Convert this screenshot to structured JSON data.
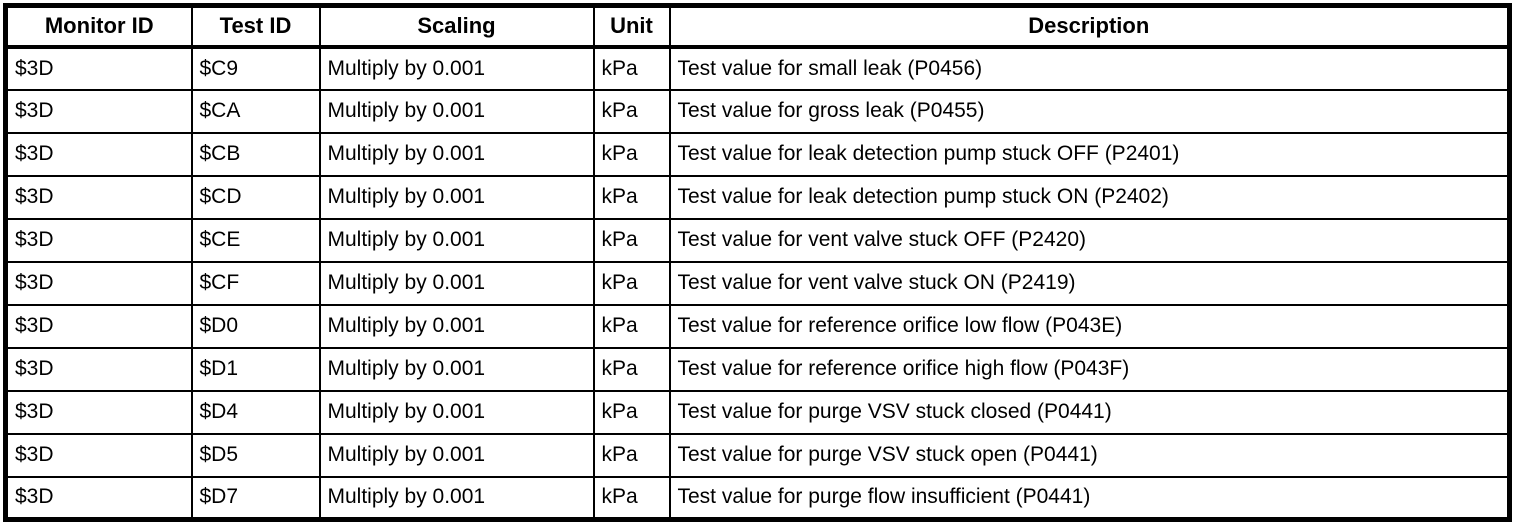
{
  "table": {
    "columns": [
      "Monitor ID",
      "Test ID",
      "Scaling",
      "Unit",
      "Description"
    ],
    "rows": [
      {
        "monitor_id": "$3D",
        "test_id": "$C9",
        "scaling": "Multiply by 0.001",
        "unit": "kPa",
        "description": "Test value for small leak (P0456)"
      },
      {
        "monitor_id": "$3D",
        "test_id": "$CA",
        "scaling": "Multiply by 0.001",
        "unit": "kPa",
        "description": "Test value for gross leak (P0455)"
      },
      {
        "monitor_id": "$3D",
        "test_id": "$CB",
        "scaling": "Multiply by 0.001",
        "unit": "kPa",
        "description": "Test value for leak detection pump stuck OFF (P2401)"
      },
      {
        "monitor_id": "$3D",
        "test_id": "$CD",
        "scaling": "Multiply by 0.001",
        "unit": "kPa",
        "description": "Test value for leak detection pump stuck ON (P2402)"
      },
      {
        "monitor_id": "$3D",
        "test_id": "$CE",
        "scaling": "Multiply by 0.001",
        "unit": "kPa",
        "description": "Test value for vent valve stuck OFF (P2420)"
      },
      {
        "monitor_id": "$3D",
        "test_id": "$CF",
        "scaling": "Multiply by 0.001",
        "unit": "kPa",
        "description": "Test value for vent valve stuck ON (P2419)"
      },
      {
        "monitor_id": "$3D",
        "test_id": "$D0",
        "scaling": "Multiply by 0.001",
        "unit": "kPa",
        "description": "Test value for reference orifice low flow (P043E)"
      },
      {
        "monitor_id": "$3D",
        "test_id": "$D1",
        "scaling": "Multiply by 0.001",
        "unit": "kPa",
        "description": "Test value for reference orifice high flow (P043F)"
      },
      {
        "monitor_id": "$3D",
        "test_id": "$D4",
        "scaling": "Multiply by 0.001",
        "unit": "kPa",
        "description": "Test value for purge VSV stuck closed (P0441)"
      },
      {
        "monitor_id": "$3D",
        "test_id": "$D5",
        "scaling": "Multiply by 0.001",
        "unit": "kPa",
        "description": "Test value for purge VSV stuck open (P0441)"
      },
      {
        "monitor_id": "$3D",
        "test_id": "$D7",
        "scaling": "Multiply by 0.001",
        "unit": "kPa",
        "description": "Test value for purge flow insufficient (P0441)"
      }
    ]
  }
}
